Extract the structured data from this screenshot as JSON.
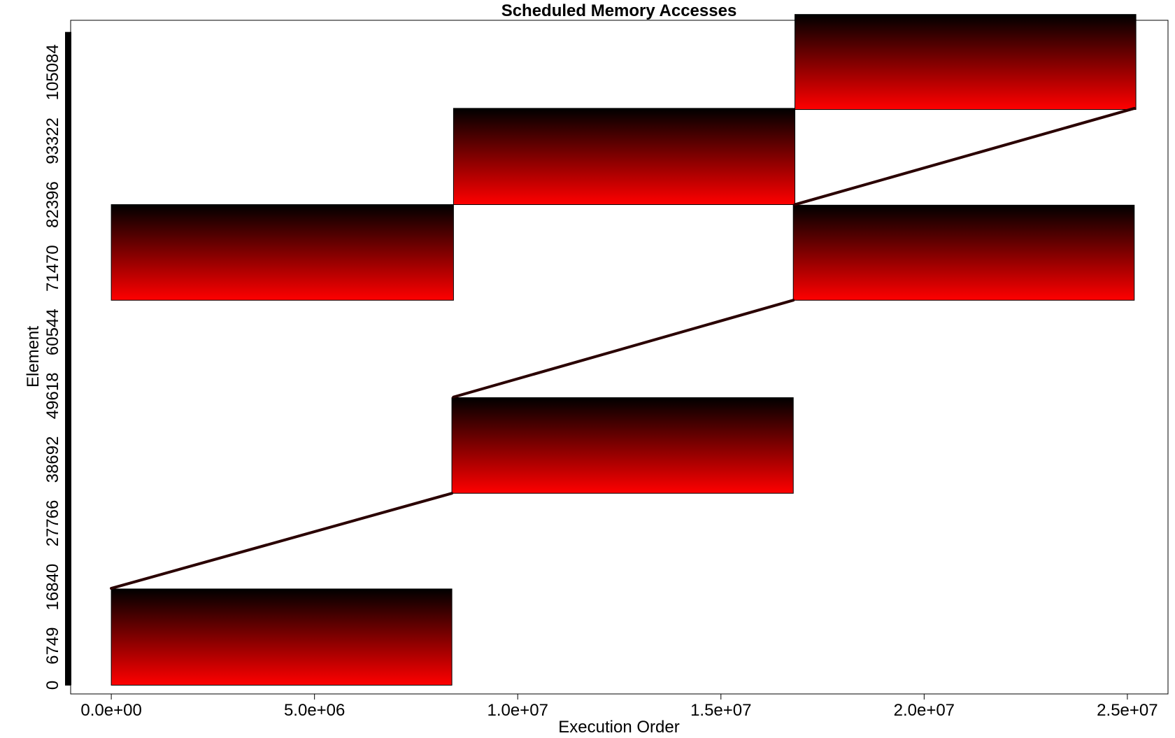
{
  "chart_data": {
    "type": "scatter",
    "title": "Scheduled Memory Accesses",
    "xlabel": "Execution Order",
    "ylabel": "Element",
    "xlim": [
      -1000000,
      26000000
    ],
    "ylim": [
      -1500,
      114000
    ],
    "x_ticks": [
      0,
      5000000,
      10000000,
      15000000,
      20000000,
      25000000
    ],
    "x_tick_labels": [
      "0.0e+00",
      "5.0e+06",
      "1.0e+07",
      "1.5e+07",
      "2.0e+07",
      "2.5e+07"
    ],
    "y_ticks": [
      0,
      6749,
      16840,
      27766,
      38692,
      49618,
      60544,
      71470,
      82396,
      93322,
      105084
    ],
    "y_tick_labels": [
      "0",
      "6749",
      "16840",
      "27766",
      "38692",
      "49618",
      "60544",
      "71470",
      "82396",
      "93322",
      "105084"
    ],
    "rug": {
      "from": 0,
      "to": 112000,
      "color": "#000000"
    },
    "color_gradient": {
      "low": "#ff0000",
      "high": "#000000"
    },
    "blocks": [
      {
        "x": [
          0,
          8380000
        ],
        "y": [
          0,
          16500
        ]
      },
      {
        "x": [
          0,
          8420000
        ],
        "y": [
          66000,
          82400
        ]
      },
      {
        "x": [
          8380000,
          16780000
        ],
        "y": [
          32900,
          49300
        ]
      },
      {
        "x": [
          8420000,
          16820000
        ],
        "y": [
          82400,
          98900
        ]
      },
      {
        "x": [
          16780000,
          25170000
        ],
        "y": [
          66000,
          82300
        ]
      },
      {
        "x": [
          16820000,
          25210000
        ],
        "y": [
          98700,
          115000
        ]
      }
    ],
    "diagonals": [
      {
        "x": [
          0,
          8380000
        ],
        "y": [
          16600,
          32900
        ]
      },
      {
        "x": [
          8420000,
          16780000
        ],
        "y": [
          49400,
          66000
        ]
      },
      {
        "x": [
          16820000,
          25170000
        ],
        "y": [
          82400,
          98900
        ]
      }
    ]
  }
}
